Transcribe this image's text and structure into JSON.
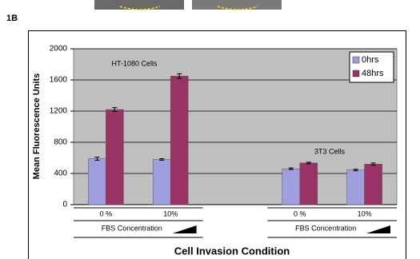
{
  "chart_data": {
    "type": "bar",
    "panel_label": "1B",
    "categories": [
      "0 %",
      "10%",
      null,
      "0 %",
      "10%"
    ],
    "series": [
      {
        "name": "0hrs",
        "color": "#9f9fdf",
        "values": [
          590,
          580,
          null,
          460,
          445
        ],
        "errors": [
          20,
          10,
          null,
          10,
          10
        ]
      },
      {
        "name": "48hrs",
        "color": "#993366",
        "values": [
          1220,
          1650,
          null,
          535,
          520
        ],
        "errors": [
          25,
          30,
          null,
          10,
          15
        ]
      }
    ],
    "ylim": [
      0,
      2000
    ],
    "yticks": [
      0,
      400,
      800,
      1200,
      1600,
      2000
    ],
    "grid": true,
    "y_label": "Mean Fluorescence Units",
    "x_label": "Cell Invasion Condition",
    "annotations": [
      "HT-1080 Cells",
      "3T3 Cells"
    ],
    "group_labels": [
      "FBS Concentration",
      "FBS Concentration"
    ],
    "legend": "upper right"
  }
}
